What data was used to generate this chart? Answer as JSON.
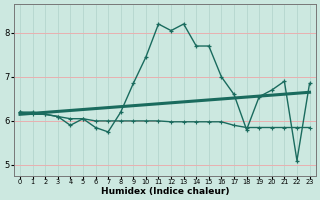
{
  "title": "",
  "xlabel": "Humidex (Indice chaleur)",
  "bg_color": "#cce8e0",
  "grid_color_h": "#e8b0b0",
  "grid_color_v": "#b8d8d0",
  "line_color": "#1a6b5e",
  "xlim": [
    -0.5,
    23.5
  ],
  "ylim": [
    4.75,
    8.65
  ],
  "yticks": [
    5,
    6,
    7,
    8
  ],
  "xticks": [
    0,
    1,
    2,
    3,
    4,
    5,
    6,
    7,
    8,
    9,
    10,
    11,
    12,
    13,
    14,
    15,
    16,
    17,
    18,
    19,
    20,
    21,
    22,
    23
  ],
  "line1_x": [
    0,
    1,
    2,
    3,
    4,
    5,
    6,
    7,
    8,
    9,
    10,
    11,
    12,
    13,
    14,
    15,
    16,
    17,
    18,
    19,
    20,
    21,
    22,
    23
  ],
  "line1_y": [
    6.2,
    6.2,
    6.15,
    6.1,
    5.9,
    6.05,
    5.85,
    5.75,
    6.2,
    6.85,
    7.45,
    8.2,
    8.05,
    8.2,
    7.7,
    7.7,
    7.0,
    6.6,
    5.8,
    6.55,
    6.7,
    6.9,
    5.1,
    6.85
  ],
  "line2_x": [
    0,
    23
  ],
  "line2_y": [
    6.15,
    6.65
  ],
  "line3_x": [
    0,
    1,
    2,
    3,
    4,
    5,
    6,
    7,
    8,
    9,
    10,
    11,
    12,
    13,
    14,
    15,
    16,
    17,
    18,
    19,
    20,
    21,
    22,
    23
  ],
  "line3_y": [
    6.2,
    6.15,
    6.15,
    6.1,
    6.05,
    6.05,
    6.0,
    6.0,
    6.0,
    6.0,
    6.0,
    6.0,
    5.98,
    5.98,
    5.98,
    5.98,
    5.98,
    5.9,
    5.85,
    5.85,
    5.85,
    5.85,
    5.85,
    5.85
  ]
}
